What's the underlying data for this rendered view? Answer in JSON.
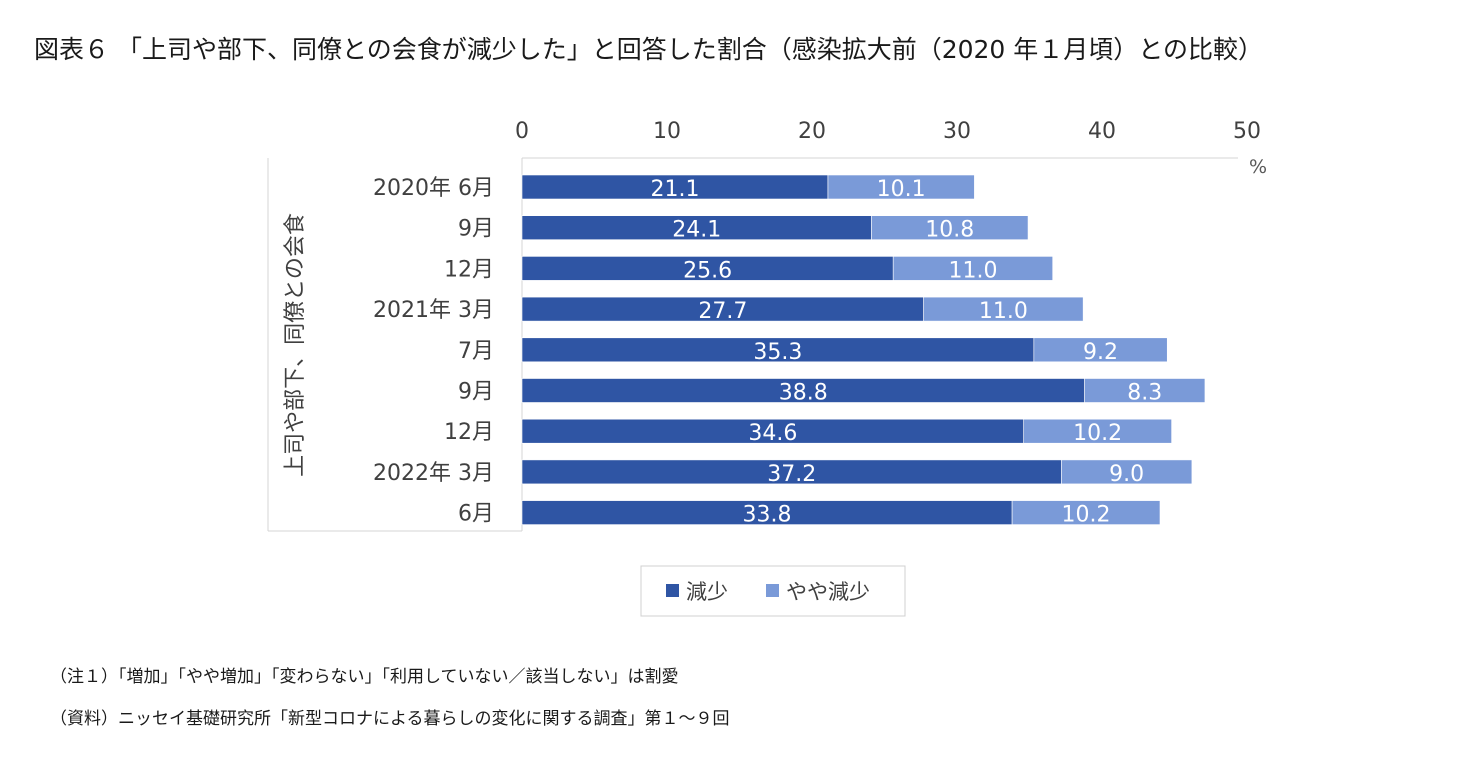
{
  "title": "図表６ 「上司や部下、同僚との会食が減少した」と回答した割合（感染拡大前（2020 年１月頃）との比較）",
  "chart_data": {
    "type": "bar",
    "orientation": "horizontal",
    "stacked": true,
    "categories": [
      "2020年 6月",
      "9月",
      "12月",
      "2021年 3月",
      "7月",
      "9月",
      "12月",
      "2022年 3月",
      "6月"
    ],
    "series": [
      {
        "name": "減少",
        "color": "#2f55a4",
        "values": [
          21.1,
          24.1,
          25.6,
          27.7,
          35.3,
          38.8,
          34.6,
          37.2,
          33.8
        ]
      },
      {
        "name": "やや減少",
        "color": "#7a9ad8",
        "values": [
          10.1,
          10.8,
          11.0,
          11.0,
          9.2,
          8.3,
          10.2,
          9.0,
          10.2
        ]
      }
    ],
    "data_labels": [
      [
        "21.1",
        "24.1",
        "25.6",
        "27.7",
        "35.3",
        "38.8",
        "34.6",
        "37.2",
        "33.8"
      ],
      [
        "10.1",
        "10.8",
        "11.0",
        "11.0",
        "9.2",
        "8.3",
        "10.2",
        "9.0",
        "10.2"
      ]
    ],
    "x_ticks": [
      "0",
      "10",
      "20",
      "30",
      "40",
      "50"
    ],
    "xlim": [
      0,
      50
    ],
    "x_unit": "%",
    "ylabel": "上司や部下、同僚との会食",
    "x_axis_position": "top",
    "legend_position": "bottom",
    "grid": false
  },
  "notes": [
    "（注１）「増加」「やや増加」「変わらない」「利用していない／該当しない」は割愛",
    "（資料）ニッセイ基礎研究所「新型コロナによる暮らしの変化に関する調査」第１～９回"
  ]
}
